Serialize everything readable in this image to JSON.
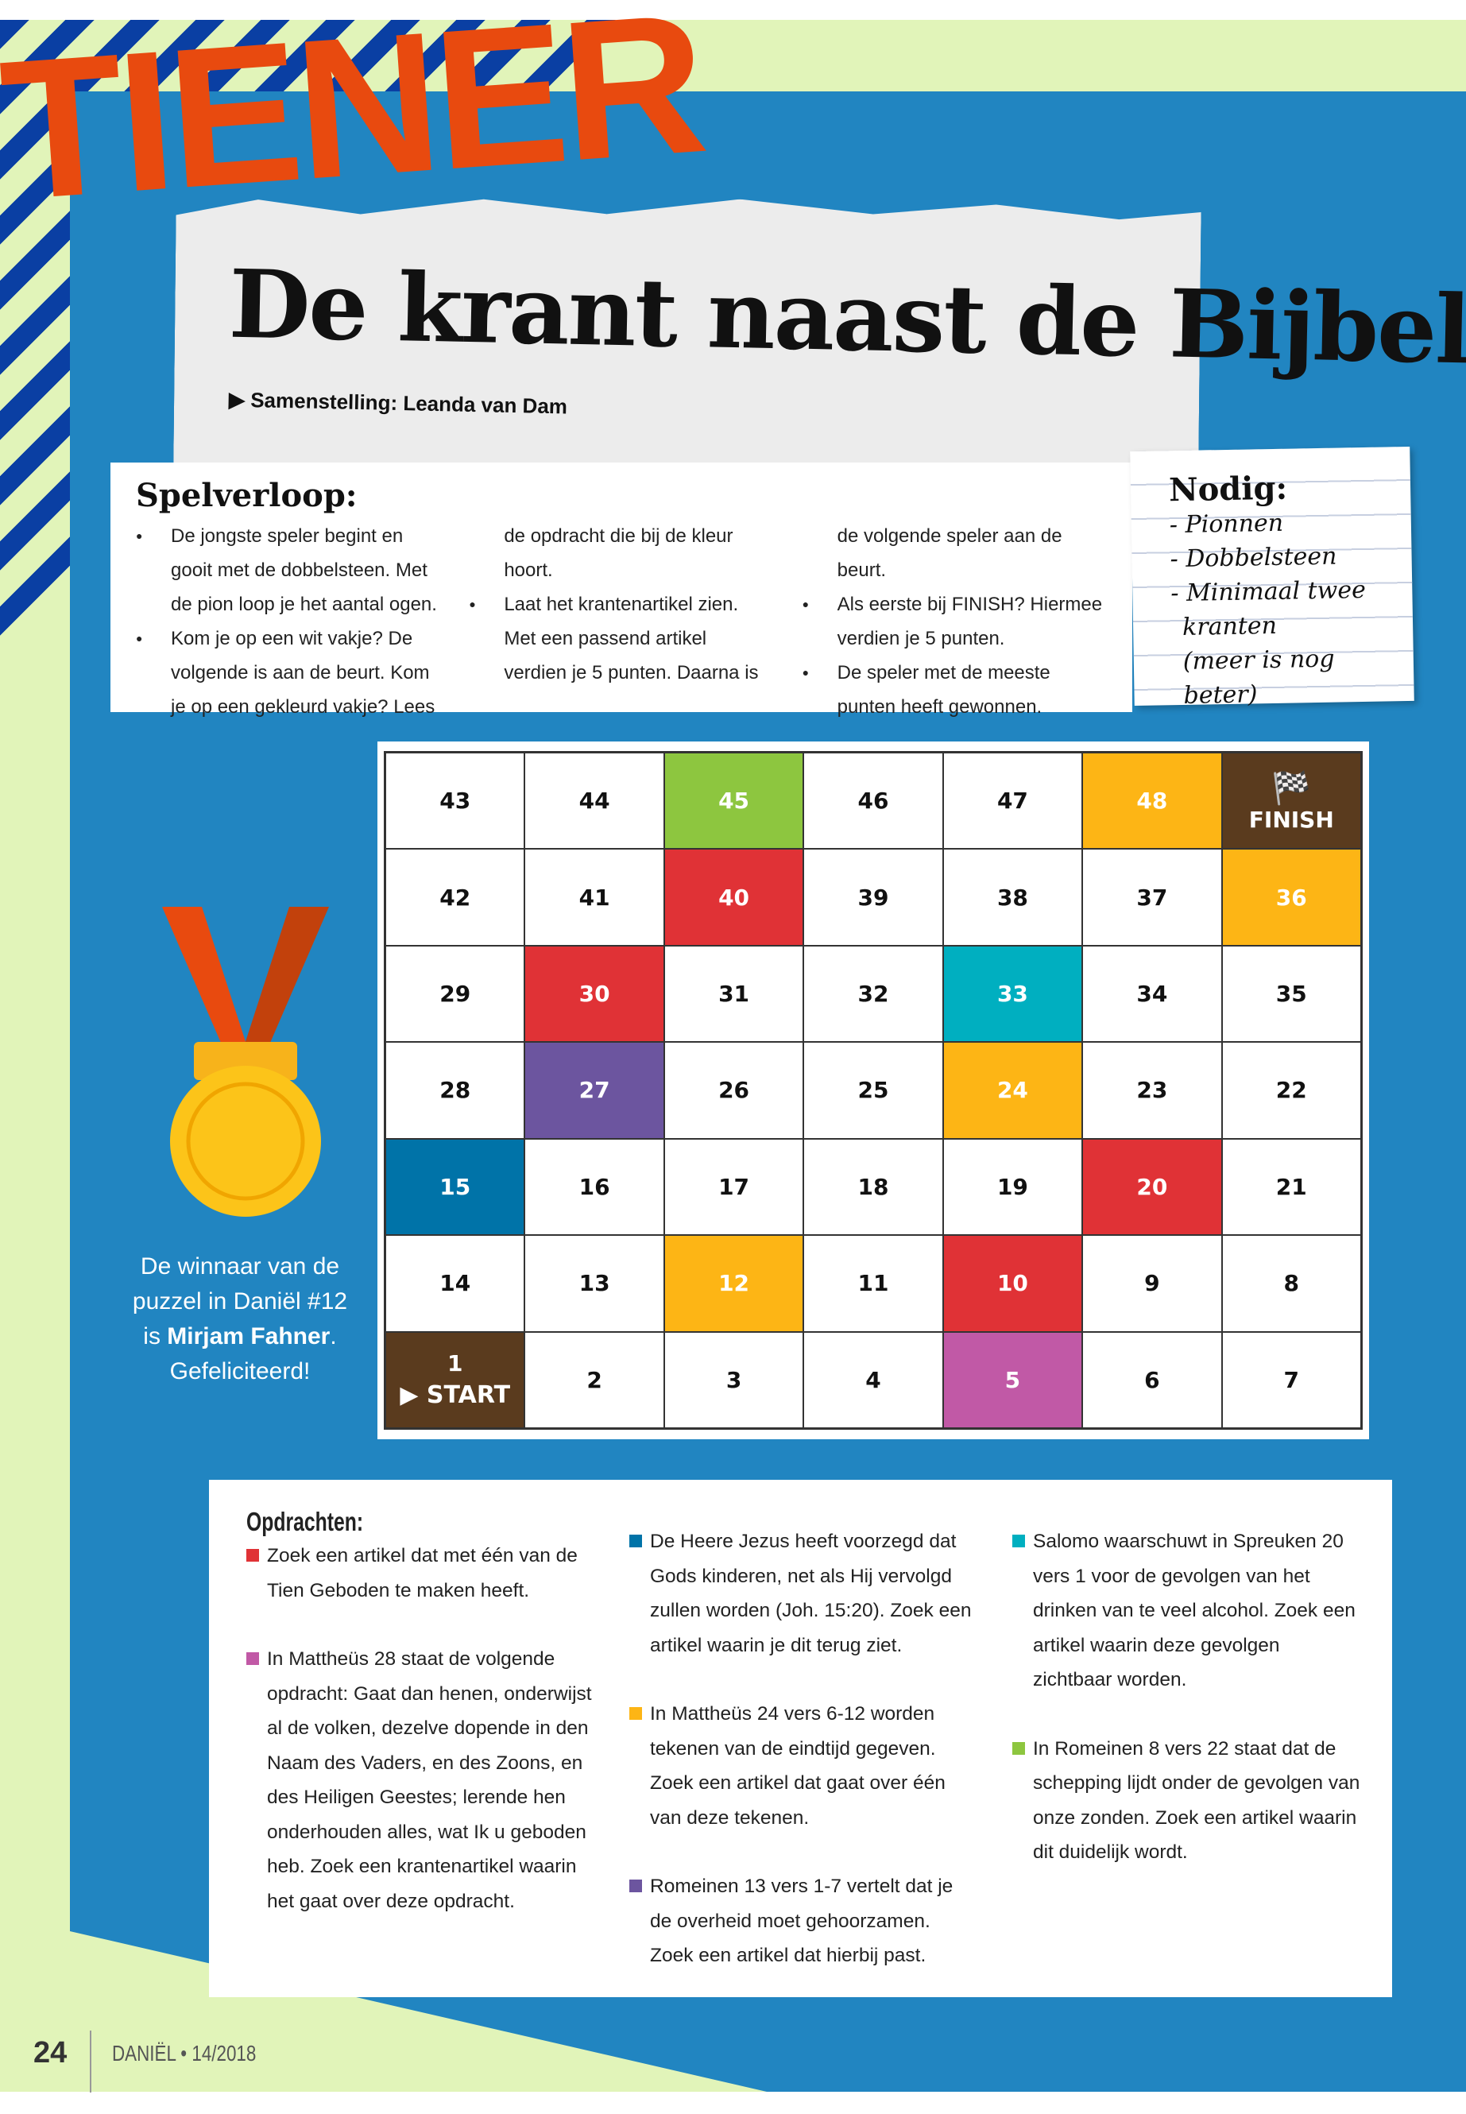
{
  "header": {
    "kicker": "TIENER",
    "title": "De krant naast de Bijbel",
    "byline": "Samenstelling: Leanda van Dam"
  },
  "spelverloop": {
    "heading": "Spelverloop:",
    "items": [
      "De jongste speler begint en gooit met de dobbelsteen. Met de pion loop je het aantal ogen.",
      "Kom je op een wit vakje? De volgende is aan de beurt. Kom je op een gekleurd vakje? Lees de opdracht die bij de kleur hoort.",
      "Laat het krantenartikel zien. Met een passend artikel verdien je 5 punten. Daarna is de volgende speler aan de beurt.",
      "Als eerste bij FINISH? Hiermee verdien je 5 punten.",
      "De speler met de meeste punten heeft gewonnen."
    ]
  },
  "nodig": {
    "heading": "Nodig:",
    "items": [
      "- Pionnen",
      "- Dobbelsteen",
      "- Minimaal twee",
      "  kranten",
      "(meer is nog beter)"
    ]
  },
  "board": {
    "finish_label": "FINISH",
    "start_label": "▶ START",
    "rows": [
      [
        "43",
        "44",
        "45",
        "46",
        "47",
        "48",
        "FINISH"
      ],
      [
        "42",
        "41",
        "40",
        "39",
        "38",
        "37",
        "36"
      ],
      [
        "29",
        "30",
        "31",
        "32",
        "33",
        "34",
        "35"
      ],
      [
        "28",
        "27",
        "26",
        "25",
        "24",
        "23",
        "22"
      ],
      [
        "15",
        "16",
        "17",
        "18",
        "19",
        "20",
        "21"
      ],
      [
        "14",
        "13",
        "12",
        "11",
        "10",
        "9",
        "8"
      ],
      [
        "1",
        "2",
        "3",
        "4",
        "5",
        "6",
        "7"
      ]
    ],
    "colors": {
      "45": "#8dc63f",
      "48": "#fdb515",
      "FINISH": "#5a3b1e",
      "40": "#e03236",
      "36": "#fdb515",
      "30": "#e03236",
      "33": "#00afc0",
      "27": "#6c559f",
      "24": "#fdb515",
      "15": "#0073a8",
      "20": "#e03236",
      "12": "#fdb515",
      "10": "#e03236",
      "1": "#5a3b1e",
      "5": "#c159a6"
    }
  },
  "winner": {
    "line1": "De winnaar van de",
    "line2": "puzzel in Daniël #12",
    "line3_pre": "is ",
    "name": "Mirjam Fahner",
    "line3_post": ".",
    "line4": "Gefeliciteerd!"
  },
  "opdrachten": {
    "heading": "Opdrachten:",
    "columns": [
      [
        {
          "color": "#e03236",
          "text": "Zoek een artikel dat met één van de Tien Geboden te maken heeft."
        },
        {
          "color": "#c159a6",
          "text": "In Mattheüs 28 staat de volgende opdracht: Gaat dan henen, onderwijst al de volken, dezelve dopende in den Naam des Vaders, en des Zoons, en des Heiligen Geestes; lerende hen onderhouden alles, wat Ik u geboden heb. Zoek een krantenartikel waarin het gaat over deze opdracht."
        }
      ],
      [
        {
          "color": "#0073a8",
          "text": "De Heere Jezus heeft voorzegd dat Gods kinderen, net als Hij vervolgd zullen worden (Joh. 15:20). Zoek een artikel waarin je dit terug ziet."
        },
        {
          "color": "#fdb515",
          "text": "In Mattheüs 24 vers 6-12 worden tekenen van de eindtijd gegeven. Zoek een artikel dat gaat over één van deze tekenen."
        },
        {
          "color": "#6c559f",
          "text": "Romeinen 13 vers 1-7 vertelt dat je de overheid moet gehoorzamen. Zoek een artikel dat hierbij past."
        }
      ],
      [
        {
          "color": "#00afc0",
          "text": "Salomo waarschuwt in Spreuken 20 vers 1 voor de gevolgen van het drinken van te veel alcohol. Zoek een artikel waarin deze gevolgen zichtbaar worden."
        },
        {
          "color": "#8dc63f",
          "text": "In Romeinen 8 vers 22 staat dat de schepping lijdt onder de gevolgen van onze zonden. Zoek een artikel waarin dit duidelijk wordt."
        }
      ]
    ]
  },
  "footer": {
    "page": "24",
    "magazine": "DANIËL • 14/2018"
  }
}
